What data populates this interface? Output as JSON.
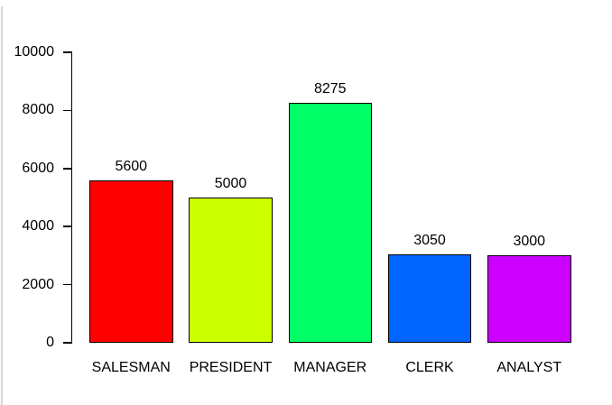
{
  "chart_data": {
    "type": "bar",
    "title": "",
    "xlabel": "",
    "ylabel": "",
    "categories": [
      "SALESMAN",
      "PRESIDENT",
      "MANAGER",
      "CLERK",
      "ANALYST"
    ],
    "values": [
      5600,
      5000,
      8275,
      3050,
      3000
    ],
    "value_labels": [
      "5600",
      "5000",
      "8275",
      "3050",
      "3000"
    ],
    "bar_colors": [
      "#FF0000",
      "#CCFF00",
      "#00FF66",
      "#0066FF",
      "#CC00FF"
    ],
    "bar_border_color": "#000000",
    "ylim": [
      0,
      10000
    ],
    "yticks": [
      0,
      2000,
      4000,
      6000,
      8000,
      10000
    ],
    "ytick_labels": [
      "0",
      "2000",
      "4000",
      "6000",
      "8000",
      "10000"
    ],
    "grid": false,
    "legend": false,
    "x_axis_line": false,
    "axis_color": "#000000",
    "background_color": "#FFFFFF"
  },
  "frame": {
    "left_edge_color": "#D6D6D6"
  }
}
